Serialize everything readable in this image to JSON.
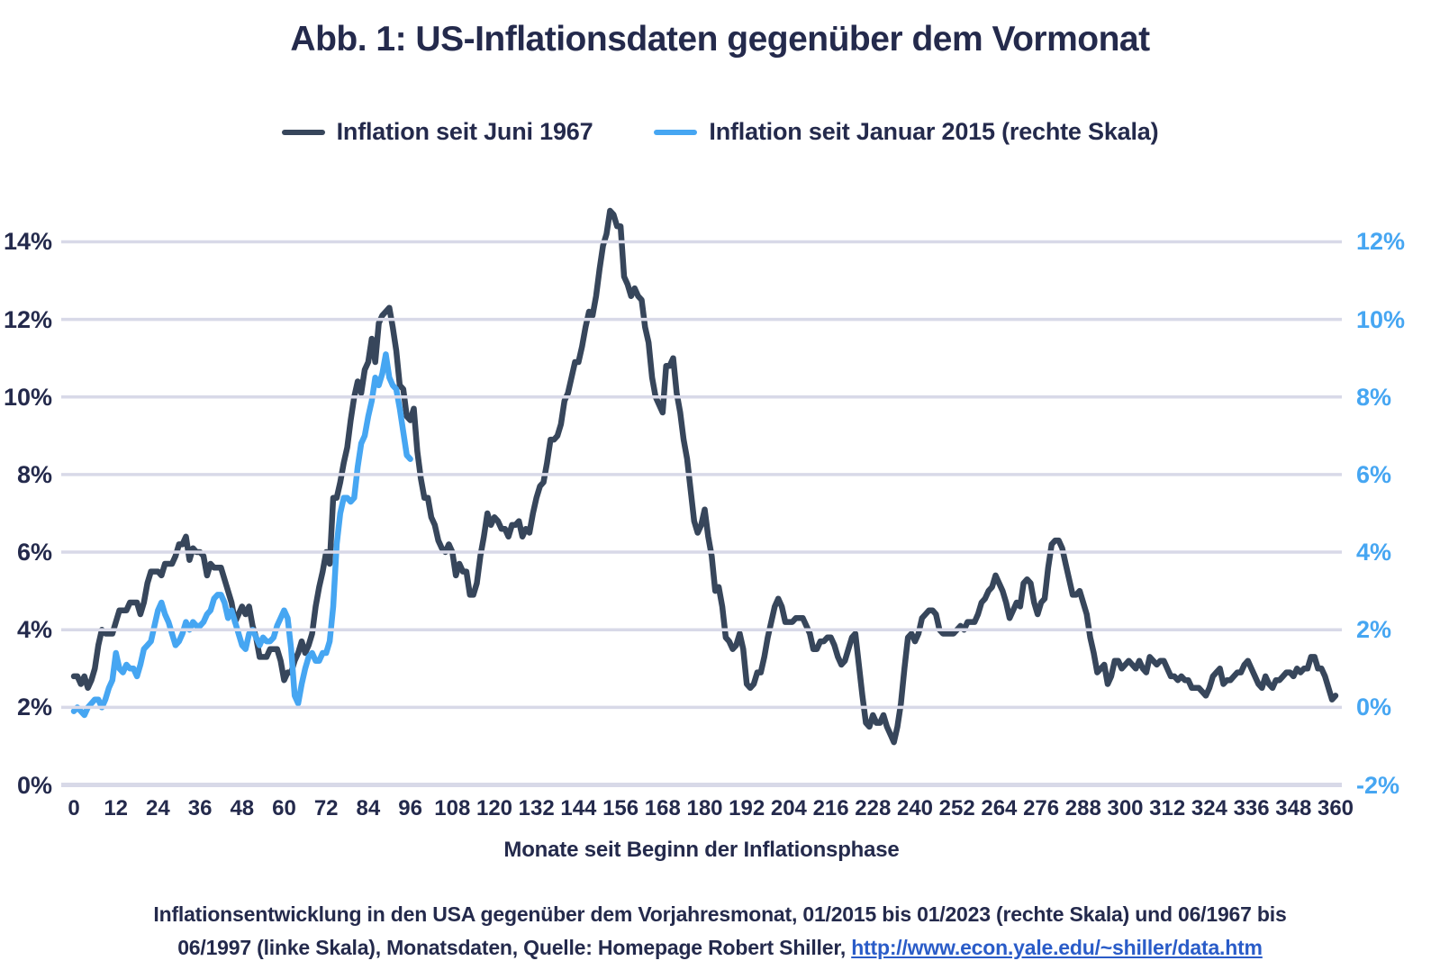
{
  "title": "Abb. 1: US-Inflationsdaten gegenüber dem Vormonat",
  "legend": [
    {
      "label": "Inflation seit Juni 1967",
      "color": "#37465b"
    },
    {
      "label": "Inflation seit Januar 2015 (rechte Skala)",
      "color": "#46a6f2"
    }
  ],
  "caption": {
    "line1": "Inflationsentwicklung in den USA gegenüber dem Vorjahresmonat, 01/2015 bis 01/2023 (rechte Skala) und 06/1967 bis",
    "line2_prefix": "06/1997 (linke Skala), Monatsdaten, Quelle: Homepage Robert Shiller, ",
    "link_text": "http://www.econ.yale.edu/~shiller/data.htm",
    "link_href": "http://www.econ.yale.edu/~shiller/data.htm"
  },
  "chart_data": {
    "type": "line",
    "title": "Abb. 1: US-Inflationsdaten gegenüber dem Vormonat",
    "xlabel": "Monate seit Beginn der Inflationsphase",
    "x_unit": "Monate",
    "x_ticks": [
      0,
      12,
      24,
      36,
      48,
      60,
      72,
      84,
      96,
      108,
      120,
      132,
      144,
      156,
      168,
      180,
      192,
      204,
      216,
      228,
      240,
      252,
      264,
      276,
      288,
      300,
      312,
      324,
      336,
      348,
      360
    ],
    "grid": true,
    "gridline_color": "#d8d9e8",
    "left_axis": {
      "ticks": [
        14,
        12,
        10,
        8,
        6,
        4,
        2,
        0
      ],
      "range": [
        0,
        14
      ],
      "unit": "%"
    },
    "right_axis": {
      "ticks": [
        12,
        10,
        8,
        6,
        4,
        2,
        0,
        -2
      ],
      "range": [
        -2,
        12
      ],
      "unit": "%",
      "shift": 2
    },
    "series": [
      {
        "id": "inflation-1967",
        "name": "Inflation seit Juni 1967",
        "axis": "left",
        "color": "#37465b",
        "x_start_month": 0,
        "values": [
          2.8,
          2.8,
          2.6,
          2.8,
          2.5,
          2.7,
          3.0,
          3.6,
          4.0,
          3.9,
          3.9,
          3.9,
          4.2,
          4.5,
          4.5,
          4.5,
          4.7,
          4.7,
          4.7,
          4.4,
          4.7,
          5.2,
          5.5,
          5.5,
          5.5,
          5.4,
          5.7,
          5.7,
          5.7,
          5.9,
          6.2,
          6.2,
          6.4,
          5.8,
          6.1,
          6.0,
          6.0,
          5.9,
          5.4,
          5.7,
          5.6,
          5.6,
          5.6,
          5.3,
          5.0,
          4.7,
          4.2,
          4.4,
          4.6,
          4.4,
          4.6,
          4.1,
          3.8,
          3.3,
          3.3,
          3.3,
          3.5,
          3.5,
          3.5,
          3.2,
          2.7,
          2.9,
          2.9,
          3.2,
          3.4,
          3.7,
          3.4,
          3.6,
          3.9,
          4.6,
          5.1,
          5.5,
          6.0,
          5.7,
          7.4,
          7.4,
          7.8,
          8.3,
          8.7,
          9.4,
          10.0,
          10.4,
          10.1,
          10.7,
          10.9,
          11.5,
          10.9,
          11.9,
          12.1,
          12.2,
          12.3,
          11.8,
          11.2,
          10.3,
          10.2,
          9.5,
          9.4,
          9.7,
          8.6,
          7.9,
          7.4,
          7.4,
          6.9,
          6.7,
          6.3,
          6.1,
          6.0,
          6.2,
          6.0,
          5.4,
          5.7,
          5.5,
          5.5,
          4.9,
          4.9,
          5.2,
          5.9,
          6.4,
          7.0,
          6.7,
          6.9,
          6.8,
          6.6,
          6.6,
          6.4,
          6.7,
          6.7,
          6.8,
          6.4,
          6.6,
          6.5,
          7.0,
          7.4,
          7.7,
          7.8,
          8.3,
          8.9,
          8.9,
          9.0,
          9.3,
          9.9,
          10.1,
          10.5,
          10.9,
          10.9,
          11.3,
          11.8,
          12.2,
          12.1,
          12.6,
          13.3,
          13.9,
          14.2,
          14.8,
          14.7,
          14.4,
          14.4,
          13.1,
          12.9,
          12.6,
          12.8,
          12.6,
          12.5,
          11.8,
          11.4,
          10.5,
          10.0,
          9.8,
          9.6,
          10.8,
          10.8,
          11.0,
          10.1,
          9.6,
          8.9,
          8.4,
          7.6,
          6.8,
          6.5,
          6.7,
          7.1,
          6.4,
          5.9,
          5.0,
          5.1,
          4.6,
          3.8,
          3.7,
          3.5,
          3.6,
          3.9,
          3.5,
          2.6,
          2.5,
          2.6,
          2.9,
          2.9,
          3.3,
          3.8,
          4.2,
          4.6,
          4.8,
          4.6,
          4.2,
          4.2,
          4.2,
          4.3,
          4.3,
          4.3,
          4.1,
          3.9,
          3.5,
          3.5,
          3.7,
          3.7,
          3.8,
          3.8,
          3.6,
          3.3,
          3.1,
          3.2,
          3.5,
          3.8,
          3.9,
          3.1,
          2.3,
          1.6,
          1.5,
          1.8,
          1.6,
          1.6,
          1.8,
          1.5,
          1.3,
          1.1,
          1.5,
          2.1,
          3.0,
          3.8,
          3.9,
          3.7,
          3.9,
          4.3,
          4.4,
          4.5,
          4.5,
          4.4,
          4.0,
          3.9,
          3.9,
          3.9,
          3.9,
          4.0,
          4.1,
          4.0,
          4.2,
          4.2,
          4.2,
          4.4,
          4.7,
          4.8,
          5.0,
          5.1,
          5.4,
          5.2,
          5.0,
          4.7,
          4.3,
          4.5,
          4.7,
          4.6,
          5.2,
          5.3,
          5.2,
          4.7,
          4.4,
          4.7,
          4.8,
          5.6,
          6.2,
          6.3,
          6.3,
          6.1,
          5.7,
          5.3,
          4.9,
          4.9,
          5.0,
          4.7,
          4.4,
          3.8,
          3.4,
          2.9,
          3.0,
          3.1,
          2.6,
          2.8,
          3.2,
          3.2,
          3.0,
          3.1,
          3.2,
          3.1,
          3.0,
          3.2,
          3.0,
          2.9,
          3.3,
          3.2,
          3.1,
          3.2,
          3.2,
          3.0,
          2.8,
          2.8,
          2.7,
          2.8,
          2.7,
          2.7,
          2.5,
          2.5,
          2.5,
          2.4,
          2.3,
          2.5,
          2.8,
          2.9,
          3.0,
          2.6,
          2.7,
          2.7,
          2.8,
          2.9,
          2.9,
          3.1,
          3.2,
          3.0,
          2.8,
          2.6,
          2.5,
          2.8,
          2.6,
          2.5,
          2.7,
          2.7,
          2.8,
          2.9,
          2.9,
          2.8,
          3.0,
          2.9,
          3.0,
          3.0,
          3.3,
          3.3,
          3.0,
          3.0,
          2.8,
          2.5,
          2.2,
          2.3
        ]
      },
      {
        "id": "inflation-2015",
        "name": "Inflation seit Januar 2015 (rechte Skala)",
        "axis": "right",
        "color": "#46a6f2",
        "x_start_month": 0,
        "values": [
          -0.1,
          0.0,
          -0.1,
          -0.2,
          0.0,
          0.1,
          0.2,
          0.2,
          0.0,
          0.2,
          0.5,
          0.7,
          1.4,
          1.0,
          0.9,
          1.1,
          1.0,
          1.0,
          0.8,
          1.1,
          1.5,
          1.6,
          1.7,
          2.1,
          2.5,
          2.7,
          2.4,
          2.2,
          1.9,
          1.6,
          1.7,
          1.9,
          2.2,
          2.0,
          2.2,
          2.1,
          2.1,
          2.2,
          2.4,
          2.5,
          2.8,
          2.9,
          2.9,
          2.7,
          2.3,
          2.5,
          2.2,
          1.9,
          1.6,
          1.5,
          1.9,
          2.0,
          1.8,
          1.6,
          1.8,
          1.7,
          1.7,
          1.8,
          2.1,
          2.3,
          2.5,
          2.3,
          1.5,
          0.3,
          0.1,
          0.6,
          1.0,
          1.3,
          1.4,
          1.2,
          1.2,
          1.4,
          1.4,
          1.7,
          2.6,
          4.2,
          5.0,
          5.4,
          5.4,
          5.3,
          5.4,
          6.2,
          6.8,
          7.0,
          7.5,
          7.9,
          8.5,
          8.3,
          8.6,
          9.1,
          8.5,
          8.3,
          8.2,
          7.7,
          7.1,
          6.5,
          6.4
        ]
      }
    ]
  }
}
